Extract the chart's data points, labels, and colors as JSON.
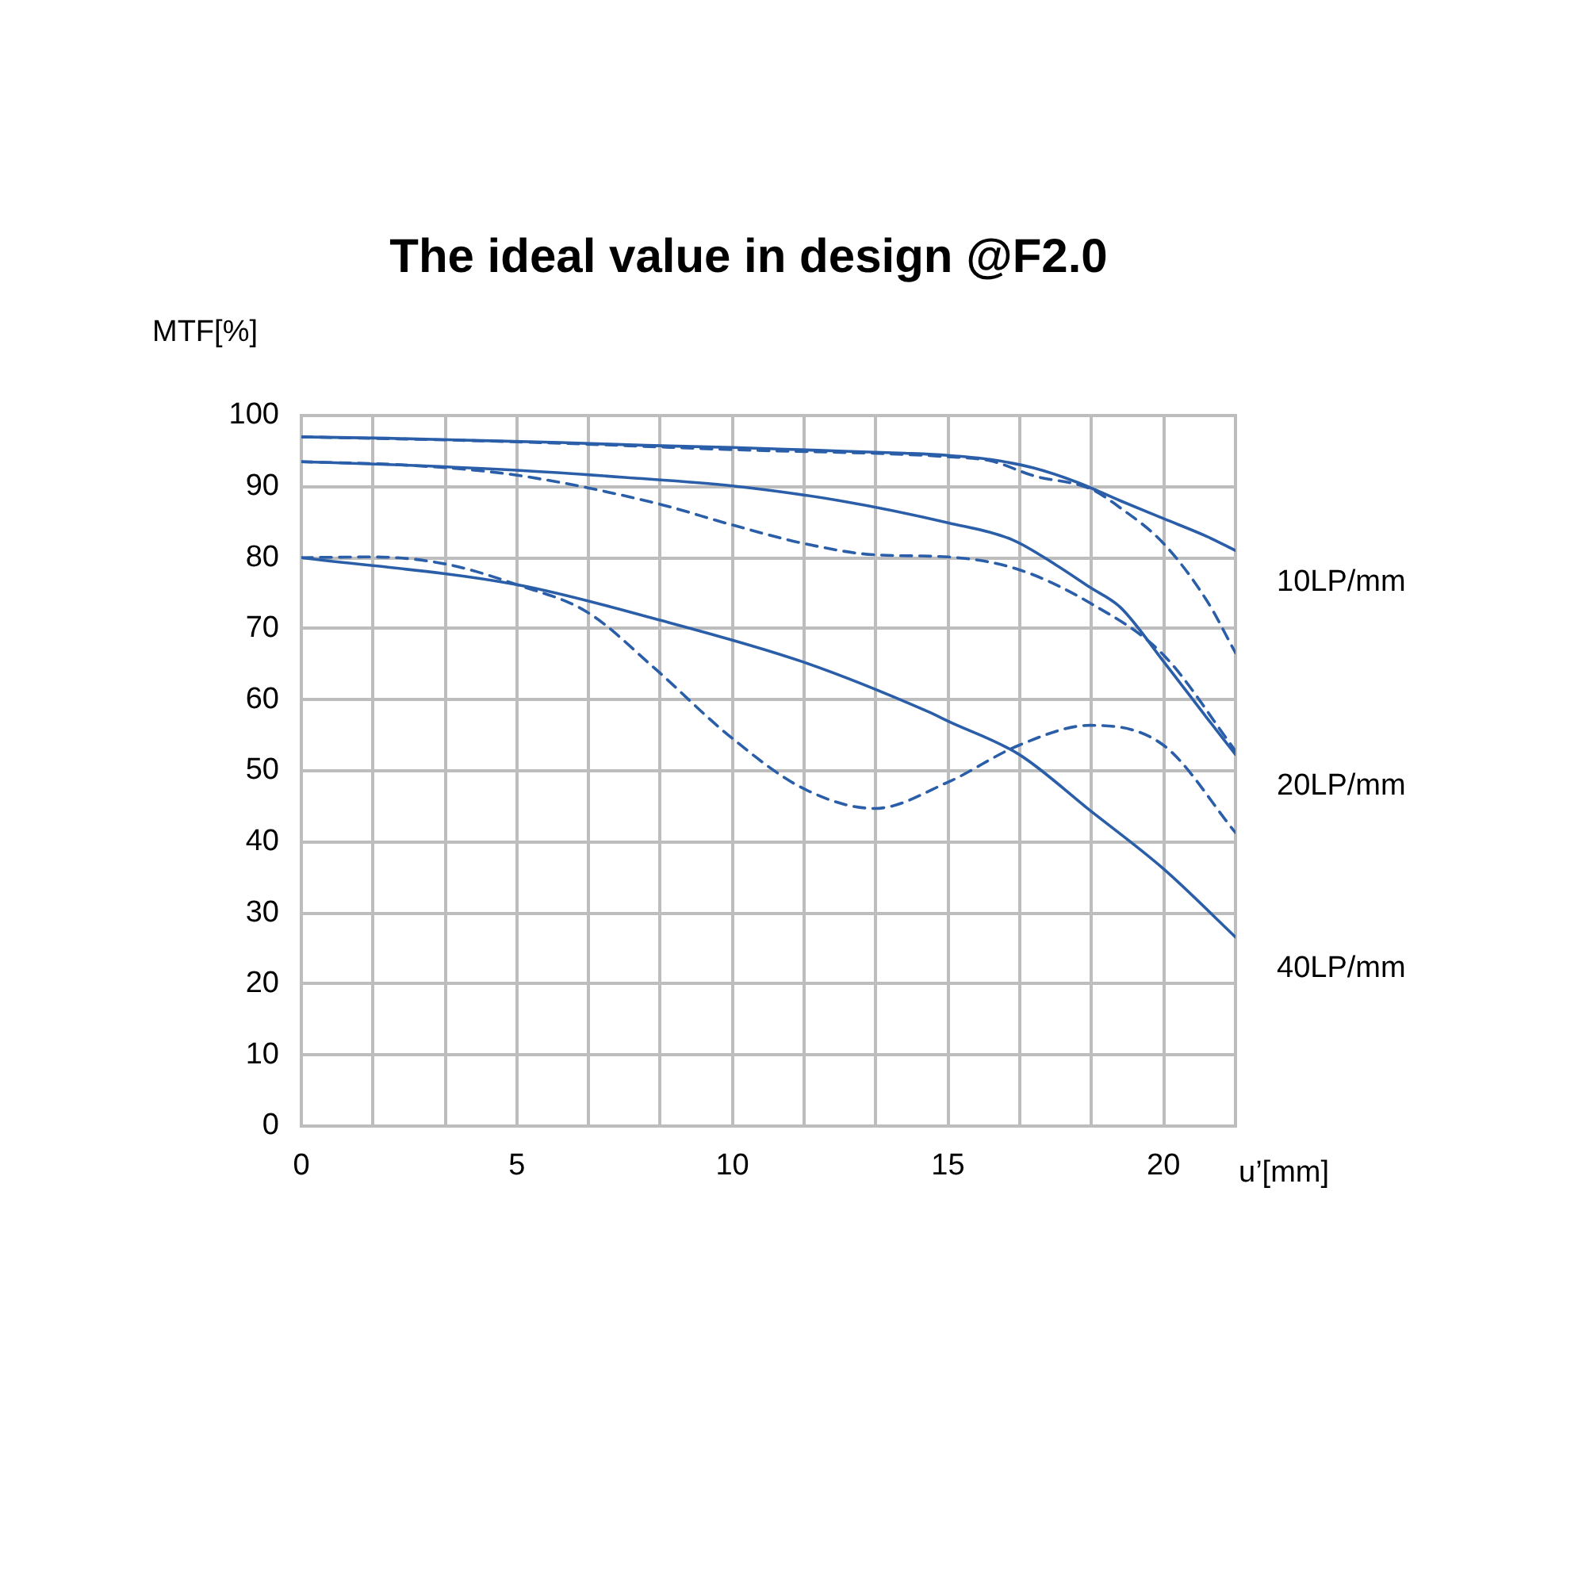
{
  "chart_data": {
    "type": "line",
    "title": "The ideal value in design @F2.0",
    "xlabel": "u’[mm]",
    "ylabel": "MTF[%]",
    "xlim": [
      0,
      21.67
    ],
    "xticks": [
      0,
      {
        "value": 1.67,
        "label": null
      },
      {
        "value": 3.33,
        "label": null
      },
      5,
      {
        "value": 6.67,
        "label": null
      },
      {
        "value": 8.33,
        "label": null
      },
      10,
      {
        "value": 11.67,
        "label": null
      },
      {
        "value": 13.33,
        "label": null
      },
      15,
      {
        "value": 16.67,
        "label": null
      },
      {
        "value": 18.33,
        "label": null
      },
      20
    ],
    "ylim": [
      0,
      100
    ],
    "yticks": [
      0,
      10,
      20,
      30,
      40,
      50,
      60,
      70,
      80,
      90,
      100
    ],
    "grid": true,
    "legend": false,
    "marker": "none",
    "series": [
      {
        "name": "10LP/mm",
        "color": "#2a5ea8",
        "line_style": "solid",
        "x": [
          0,
          2,
          4,
          6,
          8,
          10,
          12,
          14,
          15,
          16,
          17,
          18,
          19,
          20,
          21,
          21.67
        ],
        "values": [
          97,
          96.8,
          96.5,
          96.2,
          95.8,
          95.5,
          95.1,
          94.7,
          94.4,
          93.8,
          92.6,
          90.6,
          88,
          85.5,
          83,
          81
        ]
      },
      {
        "color": "#2a5ea8",
        "line_style": "dashed",
        "x": [
          0,
          5,
          10,
          15,
          16,
          17,
          18.3,
          19,
          20,
          21,
          21.67
        ],
        "values": [
          97,
          96.3,
          95.2,
          94.2,
          93.6,
          91.5,
          89.7,
          87,
          82,
          74,
          66.6
        ]
      },
      {
        "name": "20LP/mm",
        "color": "#2a5ea8",
        "line_style": "solid",
        "x": [
          0,
          2.5,
          5,
          7.5,
          10,
          12.5,
          15,
          16.5,
          17.5,
          18.3,
          19,
          20,
          21,
          21.67
        ],
        "values": [
          93.5,
          93,
          92.3,
          91.3,
          90.1,
          88,
          84.9,
          82.5,
          79,
          75.8,
          73,
          65.4,
          57.5,
          52.3
        ]
      },
      {
        "color": "#2a5ea8",
        "line_style": "dashed",
        "x": [
          0,
          2.5,
          5,
          8.2,
          10,
          11.65,
          13.3,
          15,
          16.65,
          18.3,
          20,
          21.67
        ],
        "values": [
          93.5,
          93,
          91.6,
          87.7,
          84.6,
          82,
          80.4,
          80.1,
          78.3,
          73.6,
          66.3,
          52.8
        ]
      },
      {
        "name": "40LP/mm",
        "color": "#2a5ea8",
        "line_style": "solid",
        "x": [
          0,
          5,
          8.2,
          11.65,
          14.55,
          15,
          16.65,
          18.3,
          20,
          21.67
        ],
        "values": [
          80,
          76.2,
          71.4,
          65.3,
          58.3,
          57,
          52.3,
          44.4,
          36.2,
          26.6
        ]
      },
      {
        "color": "#2a5ea8",
        "line_style": "dashed",
        "x": [
          0,
          1.64,
          3.35,
          5,
          6.64,
          8.2,
          9.93,
          11.65,
          13.3,
          15,
          16.65,
          18.3,
          20,
          21.67
        ],
        "values": [
          80,
          80.1,
          79.1,
          76.2,
          72.3,
          64.4,
          54.9,
          47.5,
          44.7,
          48.4,
          53.6,
          56.4,
          53.6,
          41.3
        ]
      }
    ]
  }
}
